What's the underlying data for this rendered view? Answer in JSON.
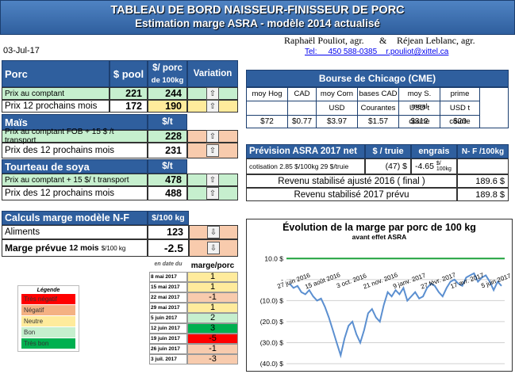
{
  "header": {
    "title_line1": "TABLEAU DE BORD NAISSEUR-FINISSEUR DE PORC",
    "title_line2": "Estimation marge ASRA - modèle 2014 actualisé",
    "date": "03-Jul-17",
    "authors_a": "Raphaël Pouliot, agr.",
    "amp": "&",
    "authors_b": "Réjean Leblanc, agr.",
    "contact": "Tel:     450 588-0385    r.pouliot@xittel.ca"
  },
  "porc": {
    "section": "Porc",
    "col_pool": "$ pool",
    "col_100kg_a": "$/ porc",
    "col_100kg_b": "de 100kg",
    "col_variation": "Variation",
    "rows": [
      {
        "label": "Prix au comptant",
        "pool": "221",
        "val": "244",
        "arrow": "⇧"
      },
      {
        "label": "Prix 12 prochains mois",
        "pool": "172",
        "val": "190",
        "arrow": "⇧"
      }
    ]
  },
  "mais": {
    "section": "Maïs",
    "unit": "$/t",
    "rows": [
      {
        "label": "Prix au comptant FOB + 15 $ /t transport",
        "val": "228",
        "arrow": "⇧"
      },
      {
        "label": "Prix des 12 prochains mois",
        "val": "231",
        "arrow": "⇧"
      }
    ]
  },
  "soya": {
    "section": "Tourteau de soya",
    "unit": "$/t",
    "rows": [
      {
        "label": "Prix au comptant + 15 $/ t  transport",
        "val": "478",
        "arrow": "⇧"
      },
      {
        "label": "Prix des 12 prochains mois",
        "val": "488",
        "arrow": "⇧"
      }
    ]
  },
  "calculs": {
    "section": "Calculs marge  modèle N-F",
    "unit": "$/100 kg",
    "aliments_label": "Aliments",
    "aliments_val": "123",
    "aliments_arrow": "⇩",
    "marge_label": "Marge prévue",
    "marge_sub": "12 mois",
    "marge_unit": "$/100 kg",
    "marge_val": "-2.5",
    "marge_arrow": "⇩"
  },
  "history": {
    "col_date": "en date du",
    "col_marge": "marge/porc",
    "rows": [
      {
        "date": "8 mai 2017",
        "val": "1",
        "cls": "yellow"
      },
      {
        "date": "15 mai 2017",
        "val": "1",
        "cls": "yellow"
      },
      {
        "date": "22 mai 2017",
        "val": "-1",
        "cls": "orange"
      },
      {
        "date": "29 mai 2017",
        "val": "1",
        "cls": "yellow"
      },
      {
        "date": "5 juin 2017",
        "val": "2",
        "cls": "green-l"
      },
      {
        "date": "12 juin 2017",
        "val": "3",
        "cls": "green-d"
      },
      {
        "date": "19 juin 2017",
        "val": "-5",
        "cls": "red"
      },
      {
        "date": "26 juin 2017",
        "val": "-1",
        "cls": "orange"
      },
      {
        "date": "3 juil. 2017",
        "val": "-3",
        "cls": "orange"
      }
    ]
  },
  "legend": {
    "title": "Légende",
    "items": [
      {
        "label": "Très négatif",
        "color": "#ff0000"
      },
      {
        "label": "Négatif",
        "color": "#f4b183"
      },
      {
        "label": "Neutre",
        "color": "#ffeb9c"
      },
      {
        "label": "Bon",
        "color": "#c6efce"
      },
      {
        "label": "Très bon",
        "color": "#00b050"
      }
    ]
  },
  "cme": {
    "title": "Bourse de Chicago (CME)",
    "cols": [
      "moy Hog",
      "CAD",
      "moy Corn",
      "bases CAD",
      "moy S. meal",
      "prime"
    ],
    "units": [
      "",
      "",
      "USD",
      "Courantes",
      "USD t courte",
      "USD t courte"
    ],
    "vals": [
      "$72",
      "$0.77",
      "$3.97",
      "$1.57",
      "$312",
      "$20"
    ]
  },
  "asra": {
    "title": "Prévision  ASRA 2017 net",
    "col_truie": "$ / truie",
    "col_engrais": "engrais",
    "col_nf": "N- F /100kg",
    "cotisation_label": "cotisation 2.85 $/100kg  29 $/truie",
    "cotisation_truie": "(47) $",
    "cotisation_engrais": "-4.65",
    "cotisation_engrais_unit": "$/ 100kg",
    "revenu_final_label": "Revenu stabilisé ajusté 2016 ( final )",
    "revenu_final_val": "189.6 $",
    "revenu_2017_label": "Revenu stabilisé 2017 prévu",
    "revenu_2017_val": "189.8 $"
  },
  "chart_data": {
    "type": "line",
    "title": "Évolution de la marge par porc de 100 kg",
    "subtitle": "avant effet ASRA",
    "ylim": [
      -40,
      15
    ],
    "yticks": [
      "10.0 $",
      "-",
      "(10.0) $",
      "(20.0) $",
      "(30.0) $",
      "(40.0) $"
    ],
    "ytick_values": [
      10,
      0,
      -10,
      -20,
      -30,
      -40
    ],
    "xticks": [
      "27 juin 2016",
      "15 août 2016",
      "3 oct. 2016",
      "21 nov. 2016",
      "9 janv. 2017",
      "27 févr. 2017",
      "17 avr. 2017",
      "5 juin 2017"
    ],
    "reference_line": 10,
    "series": [
      {
        "values": [
          -2,
          -4,
          -3,
          -6,
          -7,
          -5,
          -8,
          -10,
          -9,
          -13,
          -18,
          -24,
          -30,
          -36,
          -28,
          -22,
          -20,
          -26,
          -30,
          -24,
          -16,
          -14,
          -18,
          -20,
          -12,
          -6,
          -8,
          -5,
          -7,
          -4,
          -10,
          -8,
          -6,
          -9,
          -8,
          -4,
          -2,
          -3,
          -6,
          -8,
          -4,
          -1,
          0,
          -2,
          -3,
          1,
          2,
          3,
          -1,
          1,
          2,
          -1,
          -5,
          -1,
          -3
        ]
      }
    ]
  }
}
